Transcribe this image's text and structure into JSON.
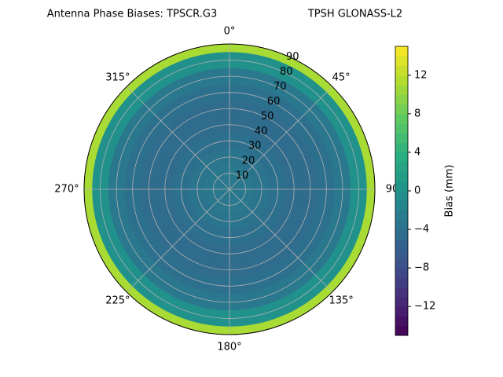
{
  "chart_data": {
    "type": "polar-contour",
    "title": "Antenna Phase Biases: TPSCR.G3",
    "subtitle": "TPSH GLONASS-L2",
    "colorbar_label": "Bias (mm)",
    "colormap": "viridis",
    "r": [
      0,
      10,
      20,
      30,
      40,
      50,
      60,
      70,
      80,
      90
    ],
    "values": [
      -3,
      -3,
      -3.5,
      -4,
      -4.5,
      -4.5,
      -4,
      -3,
      0,
      11
    ],
    "rlim": [
      0,
      90
    ],
    "rticks": [
      10,
      20,
      30,
      40,
      50,
      60,
      70,
      80,
      90
    ],
    "thetaticks": [
      {
        "value": 0,
        "label": "0°"
      },
      {
        "value": 45,
        "label": "45°"
      },
      {
        "value": 90,
        "label": "90"
      },
      {
        "value": 135,
        "label": "135°"
      },
      {
        "value": 180,
        "label": "180°"
      },
      {
        "value": 225,
        "label": "225°"
      },
      {
        "value": 270,
        "label": "270°"
      },
      {
        "value": 315,
        "label": "315°"
      }
    ],
    "clim": [
      -15,
      15
    ],
    "cticks": [
      {
        "value": -12,
        "label": "−12"
      },
      {
        "value": -8,
        "label": "−8"
      },
      {
        "value": -4,
        "label": "−4"
      },
      0,
      4,
      8,
      12
    ],
    "grid": true
  }
}
